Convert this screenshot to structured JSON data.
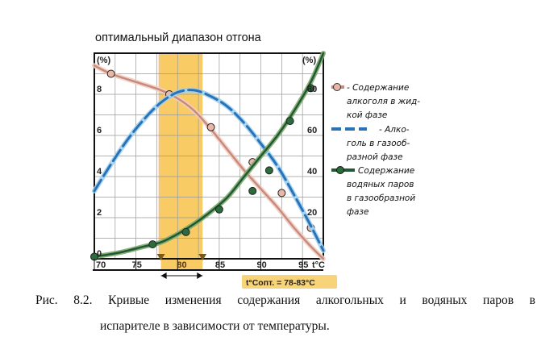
{
  "chart_data": {
    "type": "line",
    "title": "оптимальный диапазон отгона",
    "x": [
      70,
      72.5,
      75,
      77.5,
      80,
      82.5,
      85,
      87.5,
      90,
      92.5,
      95,
      97.5
    ],
    "xticks": [
      70,
      75,
      80,
      85,
      90,
      95
    ],
    "xlabel_end": "t°C",
    "xlim": [
      70,
      97.5
    ],
    "left_axis": {
      "unit": "(%)",
      "ticks": [
        0,
        2,
        4,
        6,
        8
      ],
      "ylim": [
        0,
        10
      ]
    },
    "right_axis": {
      "unit": "(%)",
      "ticks": [
        20,
        40,
        60,
        80
      ],
      "ylim": [
        0,
        100
      ]
    },
    "grid": true,
    "legend_position": "right",
    "optimal_range": {
      "from": 78,
      "to": 83,
      "label": "t°Cопт. = 78-83°С",
      "tick_label": "80"
    },
    "series": [
      {
        "name": "Содержание алкоголя в жидкой фазе",
        "axis": "left",
        "color": "#c98a7c",
        "style": "solid",
        "x": [
          70,
          72,
          75,
          78,
          80,
          82,
          84,
          86,
          88,
          90,
          92,
          94,
          96,
          97.5
        ],
        "values": [
          9.4,
          9.0,
          8.6,
          8.2,
          7.8,
          7.2,
          6.3,
          5.3,
          4.3,
          3.4,
          2.5,
          1.5,
          0.6,
          0.0
        ],
        "markers_x": [
          72,
          79,
          84,
          89,
          92.5,
          96
        ],
        "markers_y": [
          9.0,
          8.0,
          6.4,
          4.7,
          3.2,
          1.5
        ]
      },
      {
        "name": "Алкоголь в газообразной фазе",
        "axis": "left",
        "color": "#2a72b8",
        "style": "dashed",
        "x": [
          70,
          72,
          74,
          76,
          78,
          80,
          82,
          84,
          86,
          88,
          90,
          92,
          94,
          96,
          97.5
        ],
        "values": [
          3.3,
          4.6,
          5.8,
          6.8,
          7.6,
          8.1,
          8.2,
          7.9,
          7.4,
          6.6,
          5.6,
          4.5,
          3.1,
          1.6,
          0.4
        ]
      },
      {
        "name": "Содержание водяных паров в газообразной фазе",
        "axis": "right",
        "color": "#1f5a34",
        "style": "solid",
        "x": [
          70,
          73,
          76,
          78,
          80,
          82,
          84,
          86,
          88,
          90,
          92,
          94,
          96,
          97.5
        ],
        "values": [
          1,
          3,
          6,
          8,
          12,
          17,
          23,
          30,
          40,
          50,
          60,
          72,
          86,
          100
        ],
        "markers_x": [
          70,
          77,
          81,
          85,
          89,
          91,
          93.5,
          96
        ],
        "markers_y": [
          1,
          7,
          13,
          24,
          33,
          43,
          67,
          83
        ]
      }
    ]
  },
  "caption": {
    "line1": "Рис.  8.2.  Кривые  изменения  содержания  алкогольных  и  водяных  паров  в",
    "line2": "испарителе в зависимости от температуры."
  },
  "legend": {
    "liquid_alcohol": [
      "- Содержание",
      "алкоголя в жид-",
      "кой фазе"
    ],
    "gas_alcohol": [
      "- Алко-",
      "голь в газооб-",
      "разной фазе"
    ],
    "water_vapour": [
      "Содержание",
      "водяных паров",
      "в газообразной",
      "фазе"
    ]
  }
}
